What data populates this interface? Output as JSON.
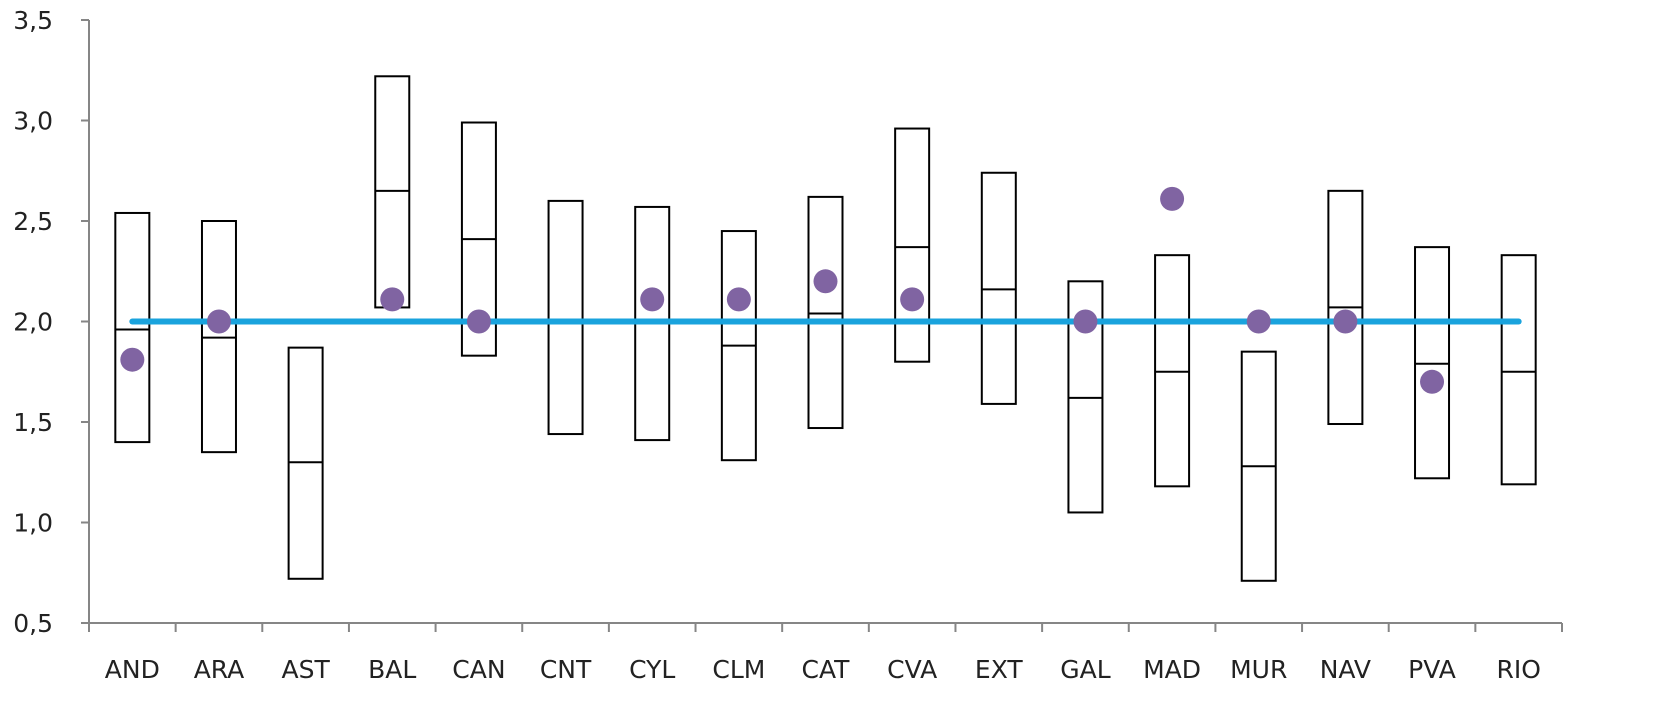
{
  "chart_data": {
    "type": "box",
    "ylim": [
      0.5,
      3.5
    ],
    "yticks": [
      "0,5",
      "1,0",
      "1,5",
      "2,0",
      "2,5",
      "3,0",
      "3,5"
    ],
    "ytick_values": [
      0.5,
      1.0,
      1.5,
      2.0,
      2.5,
      3.0,
      3.5
    ],
    "reference_line": 2.0,
    "categories": [
      "AND",
      "ARA",
      "AST",
      "BAL",
      "CAN",
      "CNT",
      "CYL",
      "CLM",
      "CAT",
      "CVA",
      "EXT",
      "GAL",
      "MAD",
      "MUR",
      "NAV",
      "PVA",
      "RIO"
    ],
    "series": [
      {
        "kind": "range",
        "low": [
          1.4,
          1.35,
          0.72,
          2.07,
          1.83,
          1.44,
          1.41,
          1.31,
          1.47,
          1.8,
          1.59,
          1.05,
          1.18,
          0.71,
          1.49,
          1.22,
          1.19
        ],
        "mid": [
          1.96,
          1.92,
          1.3,
          2.65,
          2.41,
          null,
          null,
          1.88,
          2.04,
          2.37,
          2.16,
          1.62,
          1.75,
          1.28,
          2.07,
          1.79,
          1.75
        ],
        "high": [
          2.54,
          2.5,
          1.87,
          3.22,
          2.99,
          2.6,
          2.57,
          2.45,
          2.62,
          2.96,
          2.74,
          2.2,
          2.33,
          1.85,
          2.65,
          2.37,
          2.33
        ]
      },
      {
        "kind": "points",
        "values": [
          1.81,
          2.0,
          null,
          2.11,
          2.0,
          null,
          2.11,
          2.11,
          2.2,
          2.11,
          null,
          2.0,
          2.61,
          2.0,
          2.0,
          1.7,
          null
        ]
      }
    ],
    "colors": {
      "reference_line": "#1aa3dd",
      "points": "#8064a2",
      "boxes": "#000000",
      "axis": "#868686"
    },
    "grid": false,
    "legend": "none"
  }
}
